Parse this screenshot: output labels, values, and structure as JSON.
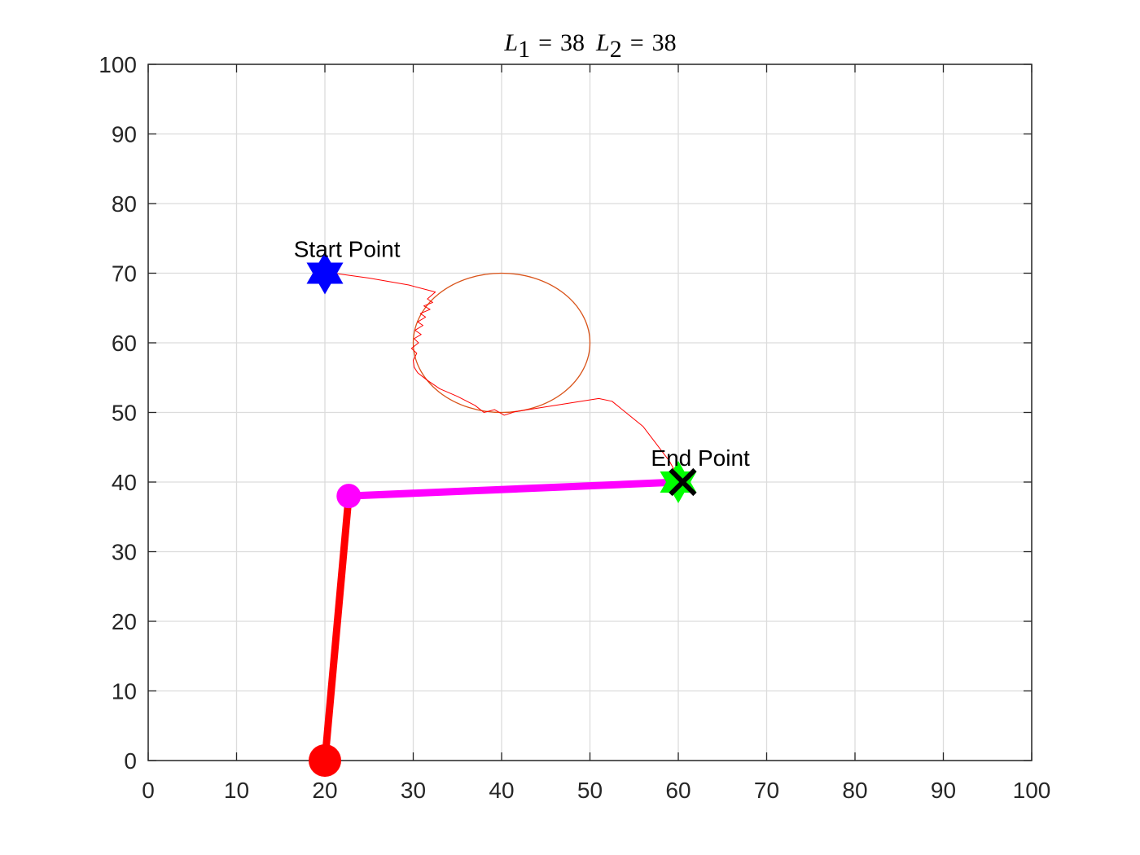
{
  "chart_data": {
    "type": "line",
    "title": {
      "var1": "L",
      "sub1": "1",
      "eq1": "=",
      "val1": "38",
      "var2": "L",
      "sub2": "2",
      "eq2": "=",
      "val2": "38"
    },
    "xlim": [
      0,
      100
    ],
    "ylim": [
      0,
      100
    ],
    "xticks": [
      0,
      10,
      20,
      30,
      40,
      50,
      60,
      70,
      80,
      90,
      100
    ],
    "yticks": [
      0,
      10,
      20,
      30,
      40,
      50,
      60,
      70,
      80,
      90,
      100
    ],
    "grid": true,
    "series": [
      {
        "kind": "circle-obstacle",
        "color": "#D95319",
        "center": [
          40,
          60
        ],
        "radius": 10
      },
      {
        "kind": "trajectory",
        "color": "#FF0000",
        "x": [
          21,
          25,
          29.5,
          32.5,
          31.6,
          32.2,
          31.2,
          31.9,
          30.8,
          31.4,
          30.5,
          31.1,
          30.2,
          30.9,
          30.1,
          30.6,
          29.8,
          30.4,
          30.0,
          30.1,
          30.5,
          31.5,
          33.0,
          35.0,
          37.0,
          38.0,
          39.2,
          40.3,
          41.5,
          44.0,
          48.0,
          51.0,
          52.5,
          56.0,
          59.0,
          60.2
        ],
        "y": [
          70,
          69.3,
          68.3,
          67.3,
          66.3,
          65.8,
          65.3,
          64.8,
          64.2,
          63.7,
          63.0,
          62.5,
          61.8,
          61.2,
          60.6,
          60.0,
          59.2,
          58.5,
          57.5,
          56.5,
          55.7,
          54.7,
          53.4,
          52.3,
          51.0,
          50.0,
          50.4,
          49.6,
          50.1,
          50.6,
          51.4,
          52.0,
          51.6,
          48.0,
          43.0,
          40.2
        ]
      },
      {
        "kind": "arm-link-1",
        "color": "#FF0000",
        "x": [
          20,
          22.7
        ],
        "y": [
          0,
          38
        ]
      },
      {
        "kind": "arm-link-2",
        "color": "#FF00FF",
        "x": [
          22.7,
          60
        ],
        "y": [
          38,
          40
        ]
      }
    ],
    "markers": [
      {
        "kind": "base-joint",
        "color": "#FF0000",
        "x": 20,
        "y": 0
      },
      {
        "kind": "elbow-joint",
        "color": "#FF00FF",
        "x": 22.7,
        "y": 38
      },
      {
        "kind": "start-star",
        "color": "#0000FF",
        "x": 20,
        "y": 70
      },
      {
        "kind": "end-star",
        "color": "#00FF00",
        "x": 60,
        "y": 40
      },
      {
        "kind": "end-cross",
        "color": "#000000",
        "x": 60.5,
        "y": 40
      }
    ],
    "annotations": [
      {
        "text": "Start Point",
        "x": 22.5,
        "y": 73.5
      },
      {
        "text": "End Point",
        "x": 62.5,
        "y": 43.5
      }
    ]
  }
}
